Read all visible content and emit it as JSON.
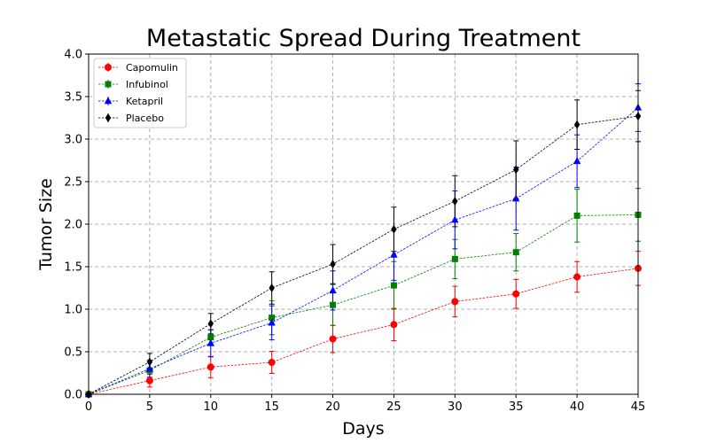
{
  "chart_data": {
    "type": "line",
    "title": "Metastatic Spread During Treatment",
    "xlabel": "Days",
    "ylabel": "Tumor Size",
    "xlim": [
      0,
      45
    ],
    "ylim": [
      0,
      4.0
    ],
    "x": [
      0,
      5,
      10,
      15,
      20,
      25,
      30,
      35,
      40,
      45
    ],
    "xticks": [
      "0",
      "5",
      "10",
      "15",
      "20",
      "25",
      "30",
      "35",
      "40",
      "45"
    ],
    "yticks": [
      "0.0",
      "0.5",
      "1.0",
      "1.5",
      "2.0",
      "2.5",
      "3.0",
      "3.5",
      "4.0"
    ],
    "grid": true,
    "legend_position": "top-left",
    "series": [
      {
        "name": "Capomulin",
        "color": "#ff0000",
        "marker": "circle",
        "values": [
          0.0,
          0.16,
          0.32,
          0.375,
          0.65,
          0.82,
          1.09,
          1.18,
          1.38,
          1.48
        ],
        "errors": [
          0.0,
          0.075,
          0.125,
          0.13,
          0.16,
          0.19,
          0.18,
          0.17,
          0.18,
          0.2
        ]
      },
      {
        "name": "Infubinol",
        "color": "#008000",
        "marker": "square",
        "values": [
          0.0,
          0.28,
          0.67,
          0.9,
          1.05,
          1.28,
          1.59,
          1.67,
          2.1,
          2.11
        ],
        "errors": [
          0.0,
          0.1,
          0.085,
          0.2,
          0.24,
          0.28,
          0.23,
          0.22,
          0.31,
          0.31
        ]
      },
      {
        "name": "Ketapril",
        "color": "#0000ff",
        "marker": "triangle",
        "values": [
          0.0,
          0.3,
          0.6,
          0.84,
          1.22,
          1.64,
          2.05,
          2.3,
          2.74,
          3.37
        ],
        "errors": [
          0.0,
          0.1,
          0.16,
          0.2,
          0.23,
          0.3,
          0.34,
          0.37,
          0.31,
          0.28
        ]
      },
      {
        "name": "Placebo",
        "color": "#000000",
        "marker": "diamond",
        "values": [
          0.0,
          0.38,
          0.83,
          1.25,
          1.53,
          1.94,
          2.27,
          2.64,
          3.17,
          3.27
        ],
        "errors": [
          0.0,
          0.1,
          0.12,
          0.19,
          0.23,
          0.26,
          0.3,
          0.34,
          0.29,
          0.3
        ]
      }
    ]
  }
}
